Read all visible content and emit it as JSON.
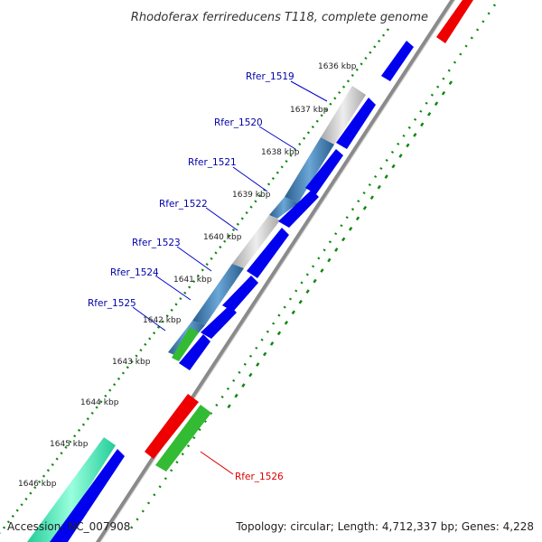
{
  "title": "Rhodoferax ferrireducens T118, complete genome",
  "ticks": [
    {
      "label": "1636 kbp"
    },
    {
      "label": "1637 kbp"
    },
    {
      "label": "1638 kbp"
    },
    {
      "label": "1639 kbp"
    },
    {
      "label": "1640 kbp"
    },
    {
      "label": "1641 kbp"
    },
    {
      "label": "1642 kbp"
    },
    {
      "label": "1643 kbp"
    },
    {
      "label": "1644 kbp"
    },
    {
      "label": "1645 kbp"
    },
    {
      "label": "1646 kbp"
    }
  ],
  "genes": [
    {
      "label": "Rfer_1519"
    },
    {
      "label": "Rfer_1520"
    },
    {
      "label": "Rfer_1521"
    },
    {
      "label": "Rfer_1522"
    },
    {
      "label": "Rfer_1523"
    },
    {
      "label": "Rfer_1524"
    },
    {
      "label": "Rfer_1525"
    },
    {
      "label": "Rfer_1526"
    }
  ],
  "colors": {
    "cds_forward": "#0000ee",
    "cds_label": "#0000aa",
    "rna_label": "#dd0000",
    "rrna": "#ee0000",
    "trna": "#33bb33",
    "highlight_blue": "#4d88bb",
    "highlight_gray": "#c8c8c8",
    "highlight_teal": "#33ddaa",
    "backbone": "#888888",
    "gc_dots": "#118811"
  },
  "footer": {
    "accession": "Accession: NC_007908",
    "summary": "Topology: circular; Length: 4,712,337 bp; Genes: 4,228"
  }
}
